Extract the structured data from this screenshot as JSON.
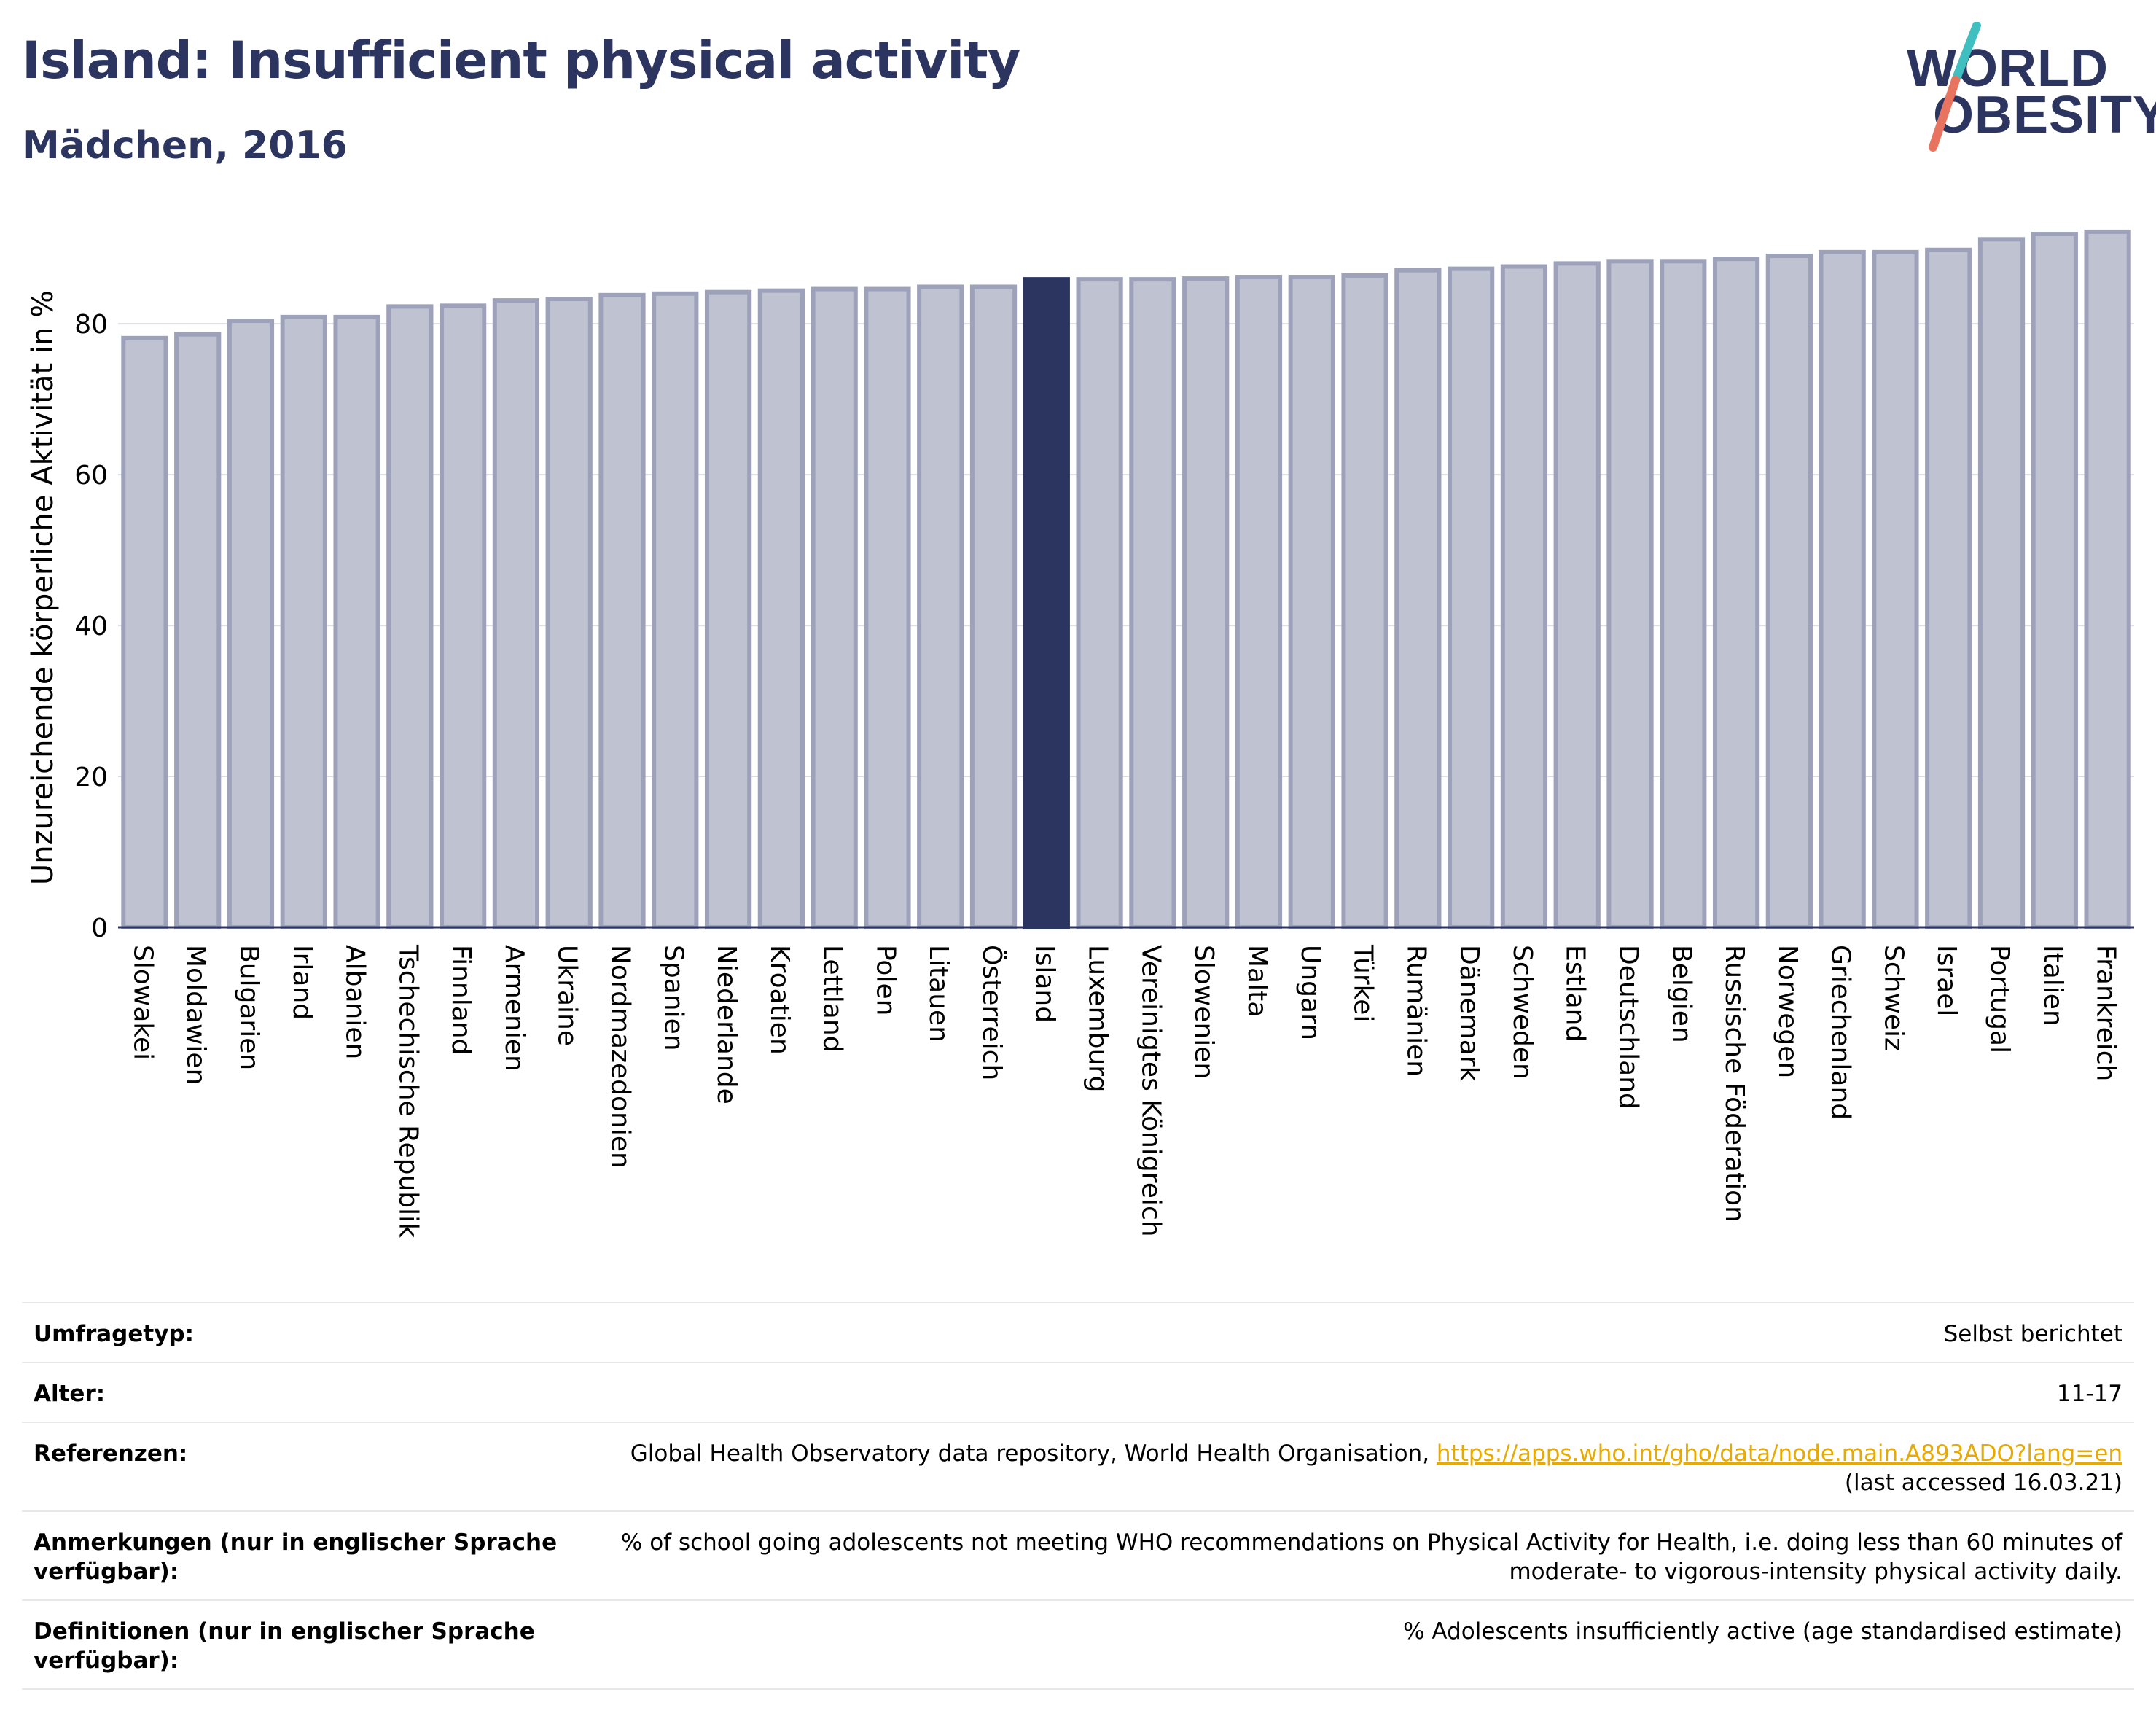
{
  "header": {
    "title": "Island: Insufficient physical activity",
    "subtitle": "Mädchen, 2016"
  },
  "logo": {
    "line1": "WORLD",
    "line2": "OBESITY",
    "colors": {
      "text": "#2b3560",
      "slash_top": "#3fbfbf",
      "slash_bottom": "#e8735f"
    }
  },
  "colors": {
    "bar_default_fill": "#bfc2d0",
    "bar_default_stroke": "#9da2ba",
    "bar_highlight": "#2b3560",
    "title": "#2b3560",
    "link": "#e8a900"
  },
  "chart_data": {
    "type": "bar",
    "title": "Island: Insufficient physical activity",
    "subtitle": "Mädchen, 2016",
    "ylabel": "Unzureichende körperliche Aktivität in %",
    "xlabel": "",
    "ylim": [
      0,
      92
    ],
    "yticks": [
      0,
      20,
      40,
      60,
      80
    ],
    "grid": true,
    "highlight": "Island",
    "categories": [
      "Slowakei",
      "Moldawien",
      "Bulgarien",
      "Irland",
      "Albanien",
      "Tschechische Republik",
      "Finnland",
      "Armenien",
      "Ukraine",
      "Nordmazedonien",
      "Spanien",
      "Niederlande",
      "Kroatien",
      "Lettland",
      "Polen",
      "Litauen",
      "Österreich",
      "Island",
      "Luxemburg",
      "Vereinigtes Königreich",
      "Slowenien",
      "Malta",
      "Ungarn",
      "Türkei",
      "Rumänien",
      "Dänemark",
      "Schweden",
      "Estland",
      "Deutschland",
      "Belgien",
      "Russische Föderation",
      "Norwegen",
      "Griechenland",
      "Schweiz",
      "Israel",
      "Portugal",
      "Italien",
      "Frankreich"
    ],
    "values": [
      78.1,
      78.6,
      80.4,
      80.9,
      80.9,
      82.3,
      82.4,
      83.1,
      83.3,
      83.8,
      84.0,
      84.2,
      84.4,
      84.6,
      84.6,
      84.9,
      84.9,
      85.9,
      85.9,
      85.9,
      86.0,
      86.2,
      86.2,
      86.4,
      87.1,
      87.3,
      87.6,
      88.0,
      88.3,
      88.3,
      88.6,
      89.0,
      89.5,
      89.5,
      89.8,
      91.2,
      91.9,
      92.2
    ]
  },
  "meta": {
    "rows": [
      {
        "label": "Umfragetyp:",
        "value": "Selbst berichtet"
      },
      {
        "label": "Alter:",
        "value": "11-17"
      },
      {
        "label": "Referenzen:",
        "value_prefix": "Global Health Observatory data repository, World Health Organisation, ",
        "link": "https://apps.who.int/gho/data/node.main.A893ADO?lang=en",
        "value_suffix": "(last accessed 16.03.21)"
      },
      {
        "label": "Anmerkungen (nur in englischer Sprache verfügbar):",
        "value": "% of school going adolescents not meeting WHO recommendations on Physical Activity for Health, i.e. doing less than 60 minutes of moderate- to vigorous-intensity physical activity daily."
      },
      {
        "label": "Definitionen (nur in englischer Sprache verfügbar):",
        "value": "% Adolescents insufficiently active (age standardised estimate)"
      }
    ]
  }
}
